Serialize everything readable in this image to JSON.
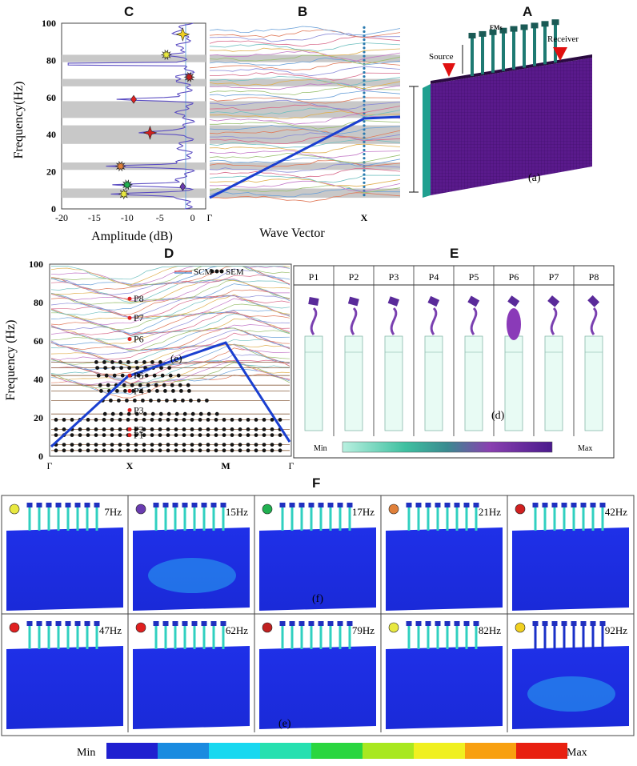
{
  "panels": {
    "c": {
      "label": "C",
      "ylabel": "Frequency(Hz)",
      "xlabel": "Amplitude (dB)",
      "xticks": [
        "-20",
        "-15",
        "-10",
        "-5",
        "0"
      ],
      "yticks": [
        "0",
        "20",
        "40",
        "60",
        "80",
        "100"
      ]
    },
    "b": {
      "label": "B",
      "xlabel": "Wave Vector",
      "kpoints": [
        "Γ",
        "X"
      ]
    },
    "a": {
      "label": "A",
      "source": "Source",
      "receiver": "Receiver",
      "fms": "FMs",
      "tag": "(a)"
    },
    "d": {
      "label": "D",
      "ylabel": "Frequency (Hz)",
      "legend_scm": "SCM",
      "legend_sem": "SEM",
      "kpoints": [
        "Γ",
        "X",
        "M",
        "Γ"
      ],
      "yticks": [
        "0",
        "20",
        "40",
        "60",
        "80",
        "100"
      ],
      "tag": "(e)"
    },
    "e": {
      "label": "E",
      "modes": [
        "P1",
        "P2",
        "P3",
        "P4",
        "P5",
        "P6",
        "P7",
        "P8"
      ],
      "min": "Min",
      "max": "Max",
      "tag": "(d)"
    },
    "f": {
      "label": "F",
      "tag_top": "(f)",
      "tag_bottom": "(e)",
      "min": "Min",
      "max": "Max"
    }
  },
  "p_points": [
    {
      "name": "P8",
      "freq": 82
    },
    {
      "name": "P7",
      "freq": 72
    },
    {
      "name": "P6",
      "freq": 61
    },
    {
      "name": "P5",
      "freq": 42
    },
    {
      "name": "P4",
      "freq": 34
    },
    {
      "name": "P3",
      "freq": 24
    },
    {
      "name": "P2",
      "freq": 14
    },
    {
      "name": "P1",
      "freq": 11
    }
  ],
  "frequencies": [
    "7Hz",
    "15Hz",
    "17Hz",
    "21Hz",
    "42Hz",
    "47Hz",
    "62Hz",
    "79Hz",
    "82Hz",
    "92Hz"
  ],
  "colors": {
    "band_gap": "#c8c8c8",
    "dispersion": "#1a3fd0",
    "scale": [
      "#2020d0",
      "#1a8be0",
      "#18d8f0",
      "#26e0b0",
      "#2ad640",
      "#a8e820",
      "#f0f020",
      "#f8a010",
      "#e82010"
    ],
    "plate": "#5a1a8c",
    "soil": "#1a2ae0"
  },
  "chart_data": [
    {
      "type": "line",
      "title": "C",
      "xlabel": "Amplitude (dB)",
      "ylabel": "Frequency(Hz)",
      "xlim": [
        -20,
        2
      ],
      "ylim": [
        0,
        100
      ],
      "band_gaps": [
        [
          6,
          11
        ],
        [
          21,
          25
        ],
        [
          35,
          45
        ],
        [
          49,
          58
        ],
        [
          66,
          70
        ],
        [
          79,
          83
        ]
      ],
      "markers": [
        {
          "freq": 8,
          "amp": -10.5,
          "shape": "flower",
          "color": "#e8e840"
        },
        {
          "freq": 13,
          "amp": -10,
          "shape": "star",
          "color": "#20b050"
        },
        {
          "freq": 12,
          "amp": -1.5,
          "shape": "diamond",
          "color": "#6a3cb0"
        },
        {
          "freq": 23,
          "amp": -11,
          "shape": "burst",
          "color": "#e0803a"
        },
        {
          "freq": 41,
          "amp": -6.5,
          "shape": "star4",
          "color": "#d02020"
        },
        {
          "freq": 59,
          "amp": -9,
          "shape": "diamond",
          "color": "#e02020"
        },
        {
          "freq": 71,
          "amp": -0.5,
          "shape": "burst",
          "color": "#c02020"
        },
        {
          "freq": 83,
          "amp": -4,
          "shape": "burst",
          "color": "#e8e840"
        },
        {
          "freq": 94,
          "amp": -1.5,
          "shape": "star4",
          "color": "#f0d020"
        }
      ]
    },
    {
      "type": "line",
      "title": "B",
      "xlabel": "Wave Vector",
      "ylabel": "",
      "ylim": [
        0,
        100
      ],
      "categories": [
        "Γ",
        "X"
      ]
    },
    {
      "type": "line",
      "title": "D",
      "xlabel": "",
      "ylabel": "Frequency (Hz)",
      "ylim": [
        0,
        100
      ],
      "categories": [
        "Γ",
        "X",
        "M",
        "Γ"
      ],
      "series": [
        {
          "name": "SCM"
        },
        {
          "name": "SEM"
        }
      ]
    }
  ]
}
